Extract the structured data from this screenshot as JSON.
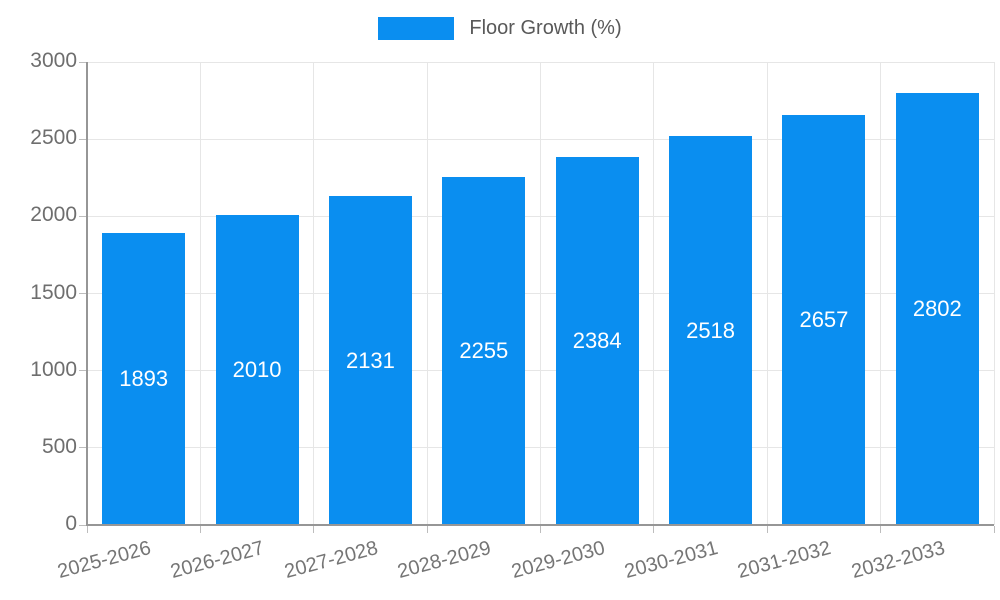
{
  "legend": {
    "label": "Floor Growth (%)"
  },
  "colors": {
    "bar": "#0a8ef0",
    "grid": "#e6e6e6",
    "axis": "#969696",
    "tick": "#bdbdbd",
    "ytick_text": "#6e6e6e",
    "xtick_text": "#757575",
    "bar_value_text": "#ffffff",
    "legend_text": "#595959"
  },
  "chart_data": {
    "type": "bar",
    "title": "",
    "legend_entries": [
      "Floor Growth (%)"
    ],
    "categories": [
      "2025-2026",
      "2026-2027",
      "2027-2028",
      "2028-2029",
      "2029-2030",
      "2030-2031",
      "2031-2032",
      "2032-2033"
    ],
    "series": [
      {
        "name": "Floor Growth (%)",
        "values": [
          1893,
          2010,
          2131,
          2255,
          2384,
          2518,
          2657,
          2802
        ]
      }
    ],
    "data_labels": [
      "1893",
      "2010",
      "2131",
      "2255",
      "2384",
      "2518",
      "2657",
      "2802"
    ],
    "xlabel": "",
    "ylabel": "",
    "ylim": [
      0,
      3000
    ],
    "yticks": [
      0,
      500,
      1000,
      1500,
      2000,
      2500,
      3000
    ],
    "ytick_labels": [
      "0",
      "500",
      "1000",
      "1500",
      "2000",
      "2500",
      "3000"
    ],
    "grid": true,
    "legend_position": "top-center",
    "xtick_rotation_deg": -15
  }
}
